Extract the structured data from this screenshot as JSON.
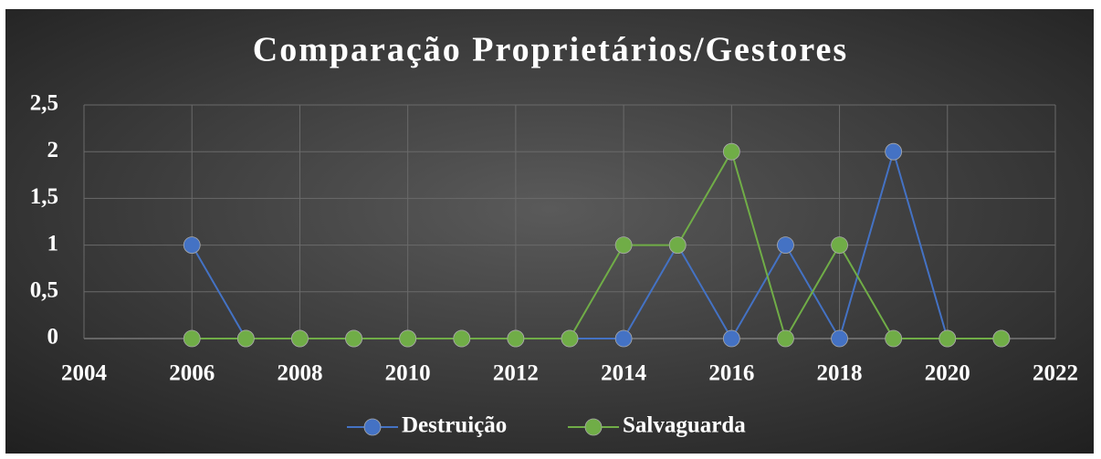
{
  "chart_data": {
    "type": "line",
    "title": "Comparação Proprietários/Gestores",
    "x": [
      2006,
      2007,
      2008,
      2009,
      2010,
      2011,
      2012,
      2013,
      2014,
      2015,
      2016,
      2017,
      2018,
      2019,
      2020,
      2021
    ],
    "series": [
      {
        "name": "Destruição",
        "color": "#4472c4",
        "values": [
          1,
          0,
          0,
          0,
          0,
          0,
          0,
          0,
          0,
          1,
          0,
          1,
          0,
          2,
          0,
          0
        ]
      },
      {
        "name": "Salvaguarda",
        "color": "#70ad47",
        "values": [
          0,
          0,
          0,
          0,
          0,
          0,
          0,
          0,
          1,
          1,
          2,
          0,
          1,
          0,
          0,
          0
        ]
      }
    ],
    "xlim": [
      2004,
      2022
    ],
    "xticks": [
      2004,
      2006,
      2008,
      2010,
      2012,
      2014,
      2016,
      2018,
      2020,
      2022
    ],
    "ylim": [
      0,
      2.5
    ],
    "yticks": [
      0,
      {
        "value": 0.5,
        "label": "0,5"
      },
      1,
      {
        "value": 1.5,
        "label": "1,5"
      },
      2,
      {
        "value": 2.5,
        "label": "2,5"
      }
    ],
    "grid": true,
    "legend": "bottom"
  }
}
